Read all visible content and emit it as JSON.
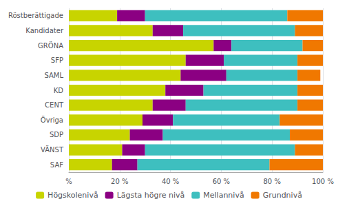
{
  "chart_data": {
    "type": "bar",
    "orientation": "horizontal",
    "stacked": true,
    "categories": [
      "Röstberättigade",
      "Kandidater",
      "GRÖNA",
      "SFP",
      "SAML",
      "KD",
      "CENT",
      "Övriga",
      "SDP",
      "VÄNST",
      "SAF"
    ],
    "series": [
      {
        "name": "Högskolenivå",
        "color": "#c8d400",
        "values": [
          19,
          33,
          57,
          46,
          44,
          38,
          33,
          29,
          24,
          21,
          17
        ]
      },
      {
        "name": "Lägsta högre nivå",
        "color": "#8b0082",
        "values": [
          11,
          12,
          7,
          15,
          18,
          15,
          13,
          12,
          13,
          9,
          10
        ]
      },
      {
        "name": "Mellannivå",
        "color": "#3ebfbf",
        "values": [
          56,
          44,
          28,
          29,
          28,
          37,
          44,
          42,
          50,
          59,
          52
        ]
      },
      {
        "name": "Grundnivå",
        "color": "#f07800",
        "values": [
          14,
          11,
          8,
          10,
          9,
          10,
          10,
          17,
          13,
          11,
          21
        ]
      }
    ],
    "xlim": [
      0,
      100
    ],
    "xticks": [
      {
        "value": 0,
        "label": "%"
      },
      {
        "value": 20,
        "label": "20 %"
      },
      {
        "value": 40,
        "label": "40 %"
      },
      {
        "value": 60,
        "label": "60 %"
      },
      {
        "value": 80,
        "label": "80 %"
      },
      {
        "value": 100,
        "label": "100 %"
      }
    ],
    "grid": true,
    "legend": "bottom"
  }
}
